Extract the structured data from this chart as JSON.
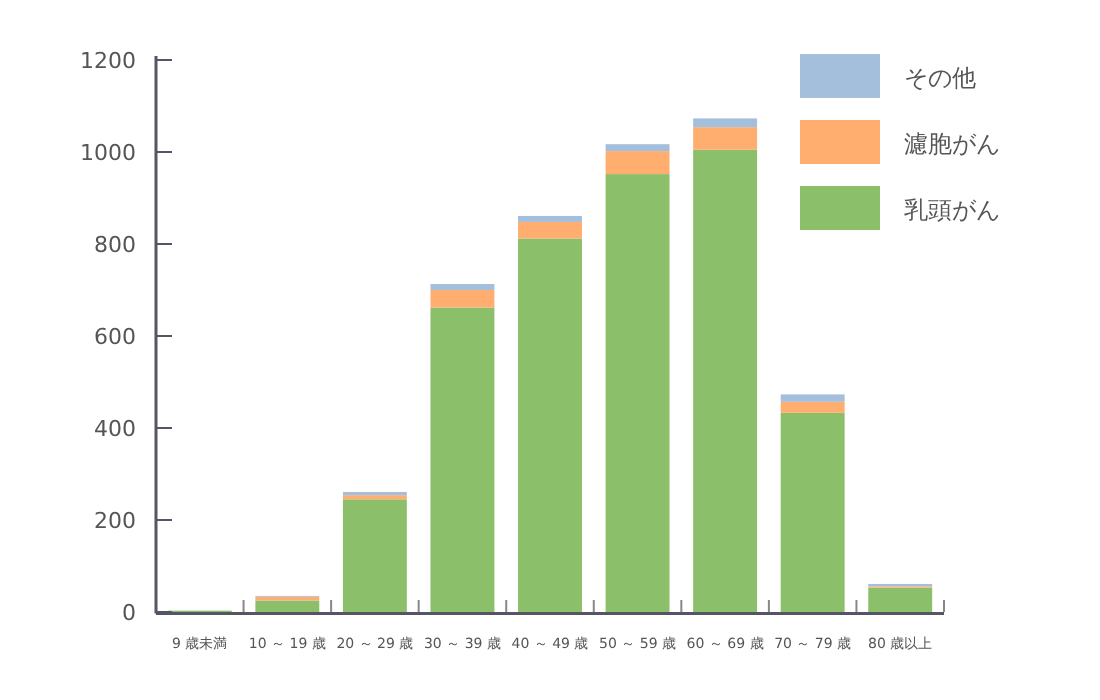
{
  "chart_data": {
    "type": "bar",
    "stacked": true,
    "categories": [
      "9 歳未満",
      "10 ～ 19 歳",
      "20 ～ 29 歳",
      "30 ～ 39 歳",
      "40 ～ 49 歳",
      "50 ～ 59 歳",
      "60 ～ 69 歳",
      "70 ～ 79 歳",
      "80 歳以上"
    ],
    "series": [
      {
        "name": "乳頭がん",
        "color": "#8cbf6a",
        "values": [
          3,
          25,
          245,
          662,
          812,
          952,
          1005,
          433,
          53
        ]
      },
      {
        "name": "濾胞がん",
        "color": "#ffae70",
        "values": [
          0,
          8,
          9,
          38,
          36,
          50,
          49,
          24,
          3
        ]
      },
      {
        "name": "その他",
        "color": "#a3bfdc",
        "values": [
          0,
          2,
          7,
          13,
          13,
          15,
          19,
          16,
          5
        ]
      }
    ],
    "ylim": [
      0,
      1200
    ],
    "yticks": [
      0,
      200,
      400,
      600,
      800,
      1000,
      1200
    ],
    "grid": false,
    "legend": "top right"
  }
}
